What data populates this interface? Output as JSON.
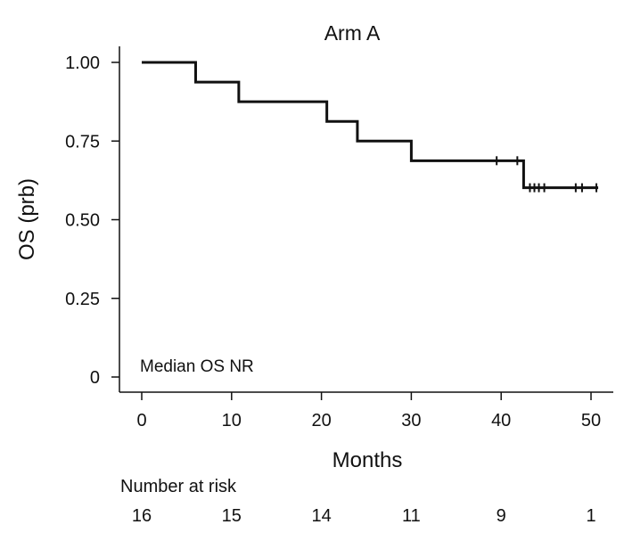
{
  "chart_data": {
    "type": "line",
    "subtype": "kaplan-meier",
    "title": "Arm A",
    "xlabel": "Months",
    "ylabel": "OS (prb)",
    "xlim": [
      0,
      50
    ],
    "ylim": [
      0,
      1
    ],
    "x_ticks": [
      0,
      10,
      20,
      30,
      40,
      50
    ],
    "x_tick_labels": [
      "0",
      "10",
      "20",
      "30",
      "40",
      "50"
    ],
    "y_ticks": [
      0,
      0.25,
      0.5,
      0.75,
      1.0
    ],
    "y_tick_labels": [
      "0",
      "0.25",
      "0.50",
      "0.75",
      "1.00"
    ],
    "grid": false,
    "series": [
      {
        "name": "Arm A",
        "steps": [
          {
            "x": 0,
            "y": 1.0
          },
          {
            "x": 6,
            "y": 0.9375
          },
          {
            "x": 10.8,
            "y": 0.875
          },
          {
            "x": 20.6,
            "y": 0.8125
          },
          {
            "x": 24,
            "y": 0.75
          },
          {
            "x": 30,
            "y": 0.6875
          },
          {
            "x": 42.5,
            "y": 0.6016
          }
        ],
        "end_x": 50.8,
        "censored": [
          {
            "x": 39.5,
            "y": 0.6875
          },
          {
            "x": 41.8,
            "y": 0.6875
          },
          {
            "x": 43.2,
            "y": 0.6016
          },
          {
            "x": 43.7,
            "y": 0.6016
          },
          {
            "x": 44.2,
            "y": 0.6016
          },
          {
            "x": 44.8,
            "y": 0.6016
          },
          {
            "x": 48.3,
            "y": 0.6016
          },
          {
            "x": 49.0,
            "y": 0.6016
          },
          {
            "x": 50.6,
            "y": 0.6016
          }
        ]
      }
    ],
    "annotation": "Median OS NR",
    "risk_table": {
      "title": "Number at risk",
      "times": [
        0,
        10,
        20,
        30,
        40,
        50
      ],
      "counts": [
        "16",
        "15",
        "14",
        "11",
        "9",
        "1"
      ]
    }
  }
}
